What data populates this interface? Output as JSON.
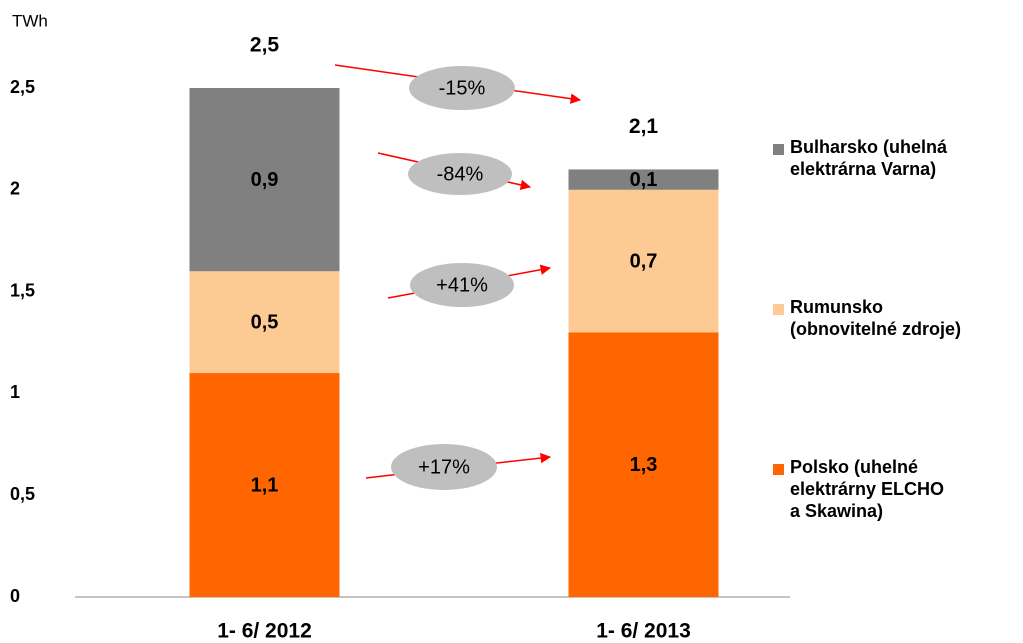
{
  "chart_data": {
    "type": "stacked_bar",
    "y_label": "TWh",
    "categories": [
      "1- 6/ 2012",
      "1- 6/ 2013"
    ],
    "series": [
      {
        "name": "Polsko (uhelné\nelektrárny ELCHO\na Skawina)",
        "color": "#ff6600",
        "values": [
          1.1,
          1.3
        ],
        "value_labels": [
          "1,1",
          "1,3"
        ]
      },
      {
        "name": "Rumunsko\n(obnovitelné zdroje)",
        "color": "#fdca93",
        "values": [
          0.5,
          0.7
        ],
        "value_labels": [
          "0,5",
          "0,7"
        ]
      },
      {
        "name": "Bulharsko (uhelná\nelektrárna Varna)",
        "color": "#808080",
        "values": [
          0.9,
          0.1
        ],
        "value_labels": [
          "0,9",
          "0,1"
        ]
      }
    ],
    "totals": {
      "values": [
        2.5,
        2.1
      ],
      "value_labels": [
        "2,5",
        "2,1"
      ]
    },
    "changes": [
      "-15%",
      "-84%",
      "+41%",
      "+17%"
    ],
    "ylim": [
      0,
      2.5
    ],
    "yticks": [
      0,
      {
        "value": 0.5,
        "label": "0,5"
      },
      1,
      {
        "value": 1.5,
        "label": "1,5"
      },
      2,
      {
        "value": 2.5,
        "label": "2,5"
      }
    ],
    "grid": false
  }
}
